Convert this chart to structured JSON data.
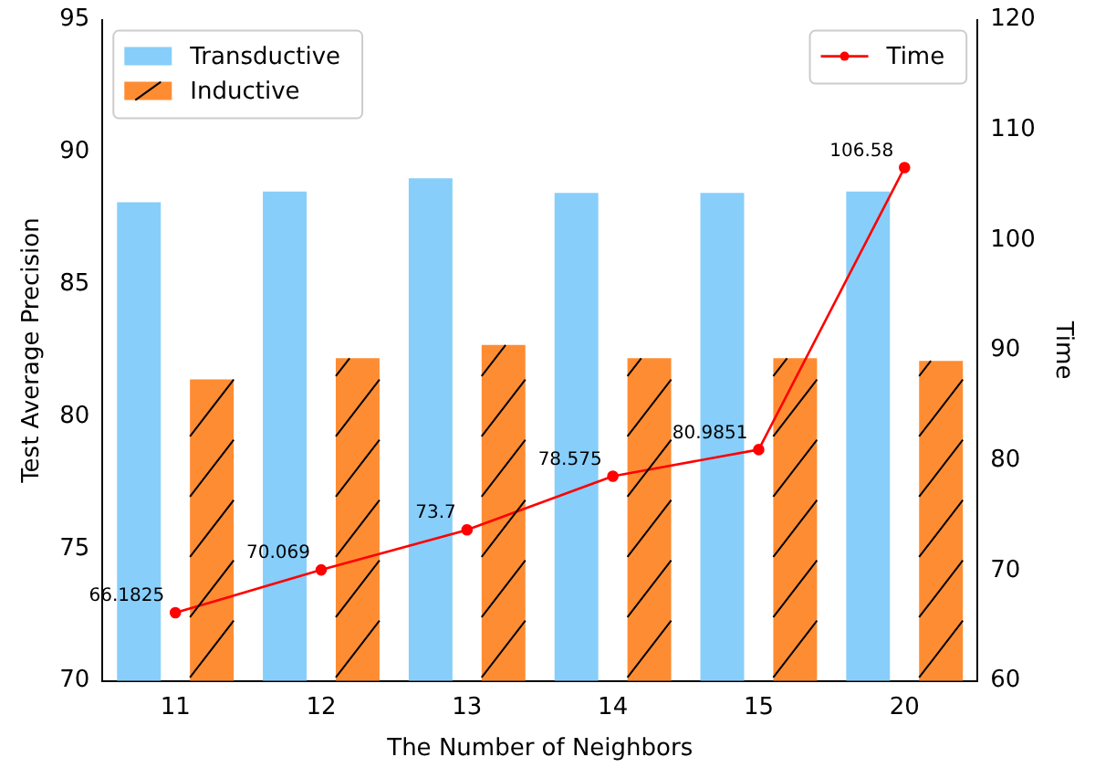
{
  "chart_data": {
    "type": "bar",
    "categories": [
      "11",
      "12",
      "13",
      "14",
      "15",
      "20"
    ],
    "xlabel": "The Number of Neighbors",
    "ylabel": "Test Average Precision",
    "y2label": "Time",
    "ylim": [
      70,
      95
    ],
    "yticks": [
      70,
      75,
      80,
      85,
      90,
      95
    ],
    "y2lim": [
      60,
      120
    ],
    "y2ticks": [
      60,
      70,
      80,
      90,
      100,
      110,
      120
    ],
    "legend": "top left",
    "marker": "circle",
    "series": [
      {
        "name": "Transductive",
        "color": "#87cefa",
        "values": [
          88.1,
          88.5,
          89.0,
          88.45,
          88.45,
          88.5
        ]
      },
      {
        "name": "Inductive",
        "color": "#fe8c33",
        "values": [
          81.4,
          82.2,
          82.7,
          82.2,
          82.2,
          82.1
        ]
      },
      {
        "name": "Time",
        "type": "line",
        "axis": "y2",
        "color": "#ff0000",
        "values": [
          66.1825,
          70.069,
          73.7,
          78.575,
          80.9851,
          106.58
        ],
        "value_labels": [
          "66.1825",
          "70.069",
          "73.7",
          "78.575",
          "80.9851",
          "106.58"
        ]
      }
    ]
  }
}
